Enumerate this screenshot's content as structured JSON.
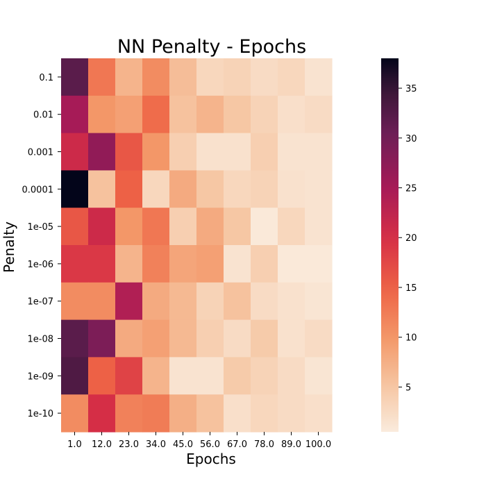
{
  "chart_data": {
    "type": "heatmap",
    "title": "NN Penalty - Epochs",
    "xlabel": "Epochs",
    "ylabel": "Penalty",
    "x_categories": [
      "1.0",
      "12.0",
      "23.0",
      "34.0",
      "45.0",
      "56.0",
      "67.0",
      "78.0",
      "89.0",
      "100.0"
    ],
    "y_categories": [
      "0.1",
      "0.01",
      "0.001",
      "0.0001",
      "1e-05",
      "1e-06",
      "1e-07",
      "1e-08",
      "1e-09",
      "1e-10"
    ],
    "values": [
      [
        32,
        13,
        7,
        11,
        6,
        3,
        3.5,
        2.5,
        3,
        1.5
      ],
      [
        25,
        10,
        9,
        14,
        5.5,
        7,
        5,
        3.5,
        2,
        2.5
      ],
      [
        21,
        27,
        16,
        10,
        4,
        1.8,
        1.8,
        4,
        1.5,
        1.5
      ],
      [
        38,
        5.5,
        15,
        3,
        8,
        5,
        3,
        3.5,
        1.8,
        1.5
      ],
      [
        16,
        21,
        10,
        13,
        4,
        8,
        5,
        0.8,
        3,
        1.5
      ],
      [
        19,
        19,
        7,
        12,
        8.5,
        9,
        1.5,
        4,
        0.8,
        0.8
      ],
      [
        11,
        11,
        24,
        8,
        6.5,
        3.5,
        5.5,
        2.5,
        1.8,
        1.3
      ],
      [
        32,
        29,
        8,
        9,
        6.5,
        4,
        2.5,
        4.5,
        1.8,
        2.5
      ],
      [
        33,
        15,
        18,
        7,
        1.5,
        1.5,
        4.5,
        3.5,
        2.5,
        1.3
      ],
      [
        11,
        20,
        12,
        12.5,
        7.5,
        5.5,
        2,
        3,
        2.5,
        2
      ]
    ],
    "colorbar": {
      "min": 0.5,
      "max": 38,
      "ticks": [
        5,
        10,
        15,
        20,
        25,
        30,
        35
      ]
    },
    "colormap": "rocket_r",
    "grid": false
  }
}
